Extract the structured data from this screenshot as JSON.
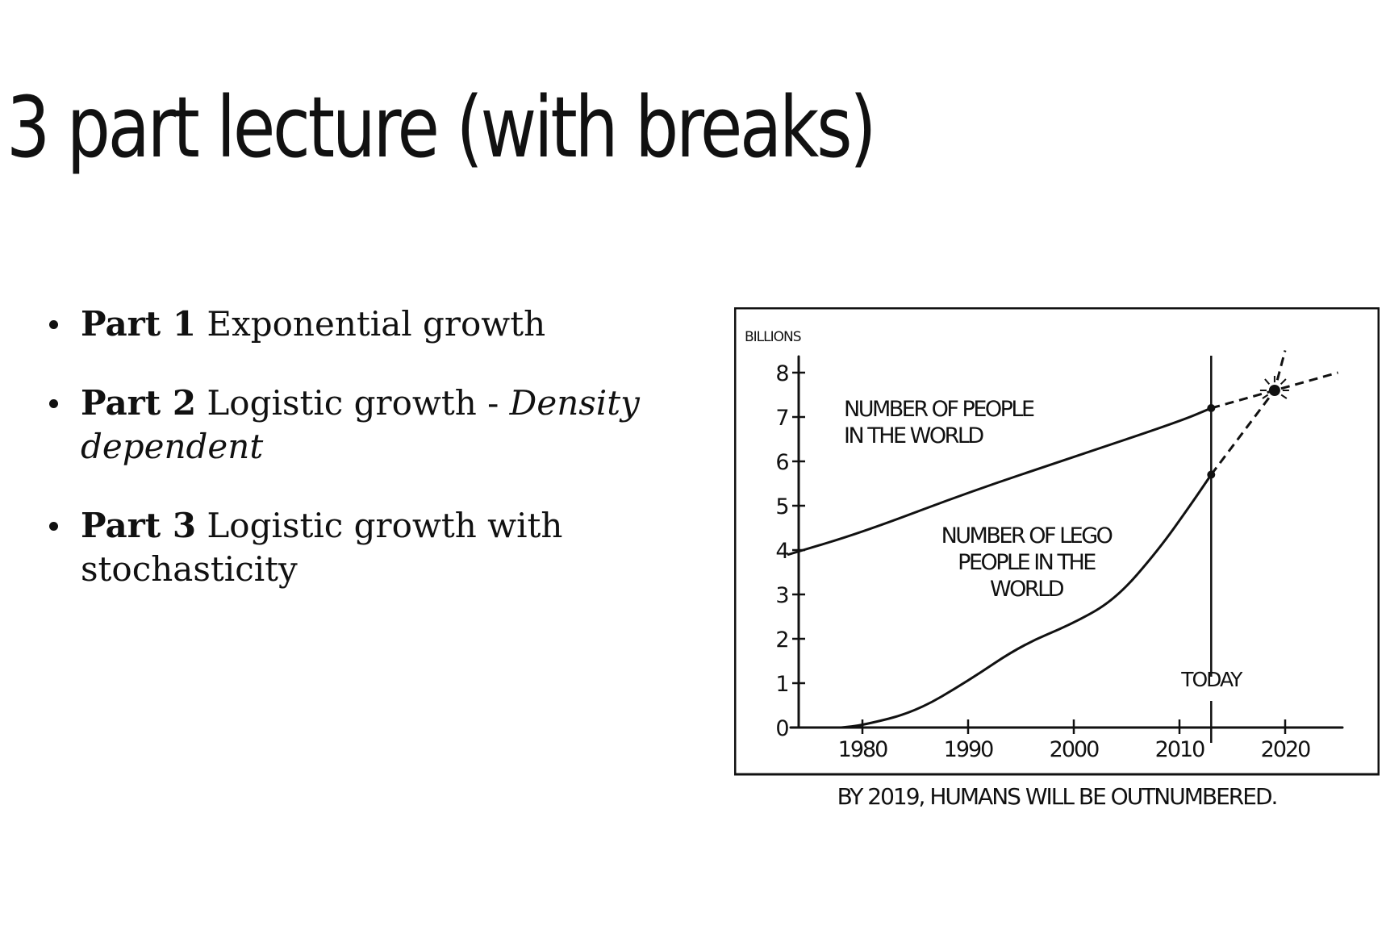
{
  "slide": {
    "title": "3 part lecture (with breaks)"
  },
  "bullets": [
    {
      "bold": "Part 1",
      "text": "Exponential growth",
      "italic": ""
    },
    {
      "bold": "Part 2",
      "text": "Logistic growth - ",
      "italic": "Density dependent"
    },
    {
      "bold": "Part 3",
      "text": "Logistic growth with stochasticity",
      "italic": ""
    }
  ],
  "chart_data": {
    "type": "line",
    "ylabel": "BILLIONS",
    "xlim": [
      1973,
      2025
    ],
    "ylim": [
      0,
      8
    ],
    "x_ticks": [
      "1980",
      "1990",
      "2000",
      "2010",
      "2020"
    ],
    "y_ticks": [
      "0",
      "1",
      "2",
      "3",
      "4",
      "5",
      "6",
      "7",
      "8"
    ],
    "today_year": 2013,
    "today_label": "TODAY",
    "caption": "BY 2019, HUMANS WILL BE OUTNUMBERED.",
    "series": [
      {
        "name": "NUMBER OF PEOPLE IN THE WORLD",
        "label_lines": [
          "NUMBER OF PEOPLE",
          "IN THE WORLD"
        ],
        "x": [
          1973,
          1980,
          1990,
          2000,
          2010,
          2013
        ],
        "y": [
          3.9,
          4.4,
          5.3,
          6.1,
          6.9,
          7.2
        ],
        "projection": {
          "x": [
            2013,
            2019,
            2025
          ],
          "y": [
            7.2,
            7.6,
            8.0
          ]
        }
      },
      {
        "name": "NUMBER OF LEGO PEOPLE IN THE WORLD",
        "label_lines": [
          "NUMBER OF LEGO",
          "PEOPLE IN THE",
          "WORLD"
        ],
        "x": [
          1978,
          1980,
          1985,
          1990,
          1995,
          2000,
          2004,
          2008,
          2011,
          2013
        ],
        "y": [
          0.0,
          0.05,
          0.35,
          1.05,
          1.85,
          2.35,
          2.9,
          4.0,
          5.0,
          5.7
        ],
        "projection": {
          "x": [
            2013,
            2019,
            2020
          ],
          "y": [
            5.7,
            7.6,
            8.5
          ]
        }
      }
    ],
    "intersection": {
      "x": 2019,
      "y": 7.6
    }
  }
}
